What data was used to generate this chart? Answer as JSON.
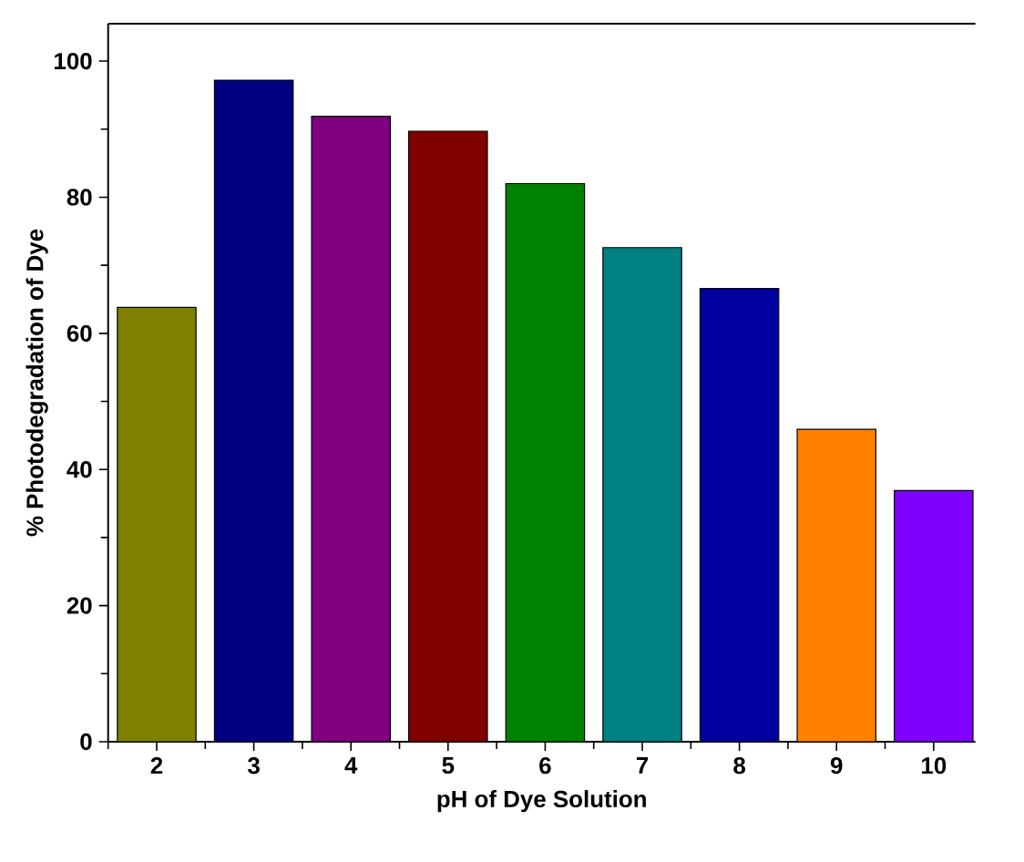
{
  "chart_data": {
    "type": "bar",
    "xlabel": "pH of Dye Solution",
    "ylabel": "% Photodegradation of Dye",
    "categories": [
      "2",
      "3",
      "4",
      "5",
      "6",
      "7",
      "8",
      "9",
      "10"
    ],
    "values": [
      63.8,
      97.2,
      91.9,
      89.7,
      82.0,
      72.6,
      66.6,
      45.9,
      36.9
    ],
    "colors": [
      "#808000",
      "#000080",
      "#800080",
      "#800000",
      "#008000",
      "#008080",
      "#0000a0",
      "#ff8000",
      "#8000ff"
    ],
    "ylim": [
      0,
      105.5
    ],
    "yticks": [
      0,
      20,
      40,
      60,
      80,
      100
    ],
    "grid": false
  }
}
